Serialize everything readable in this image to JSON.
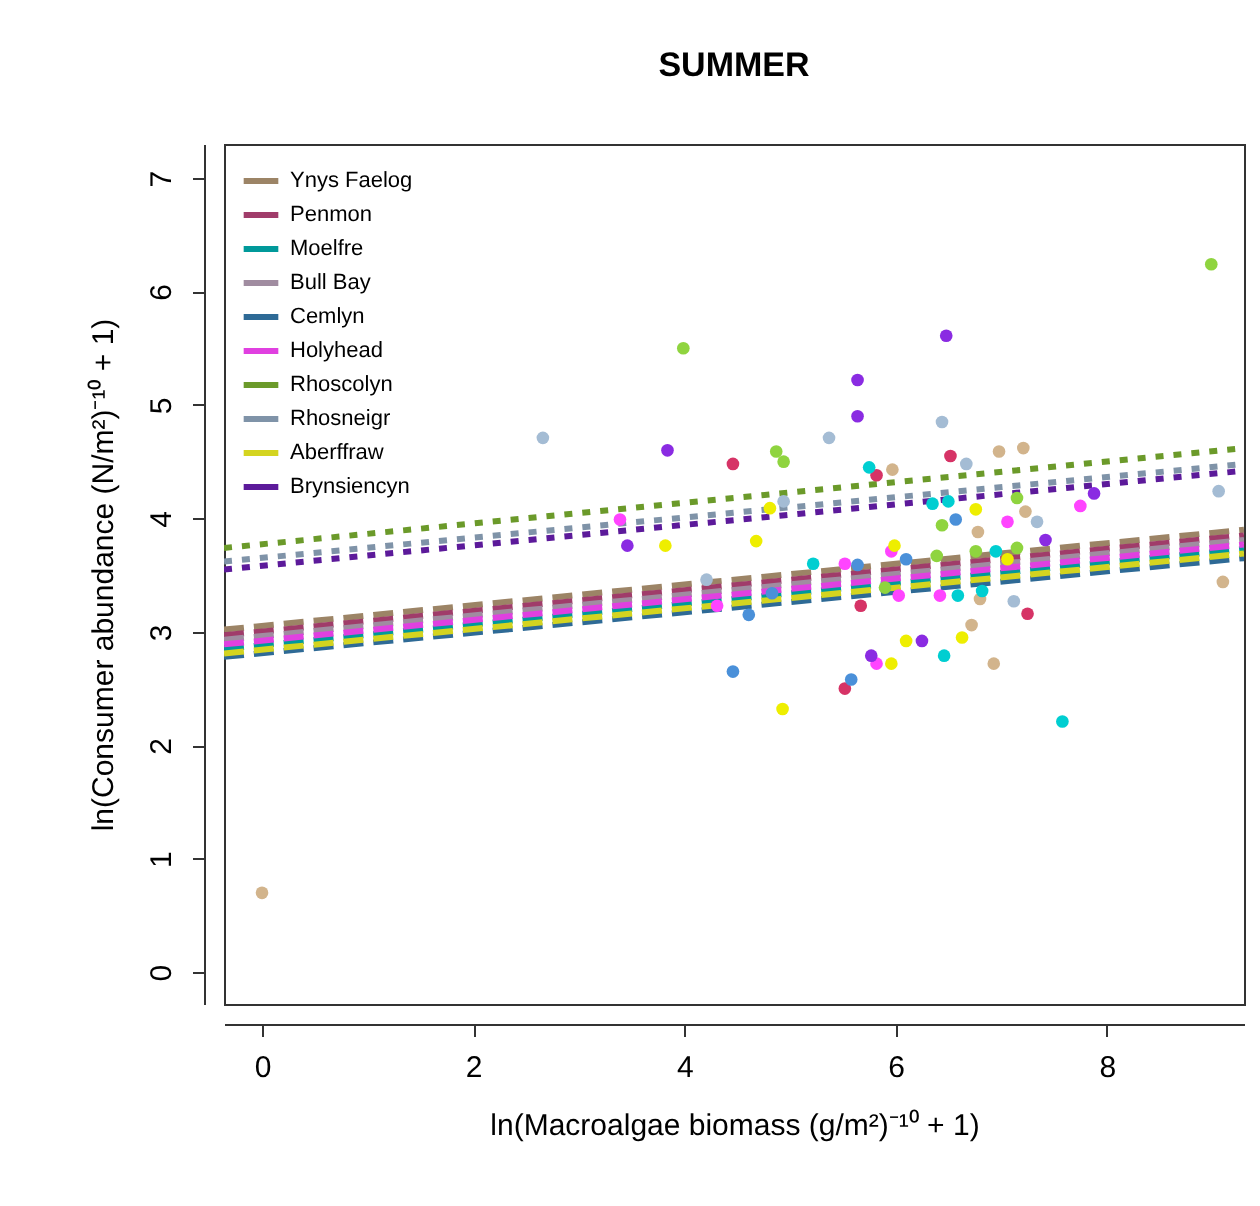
{
  "chart_data": {
    "type": "scatter",
    "title": "SUMMER",
    "xlabel": "ln(Macroalgae biomass (g/m²)⁻¹⁰ + 1)",
    "ylabel": "ln(Consumer abundance (N/m²)⁻¹⁰ + 1)",
    "xlim": [
      -0.36,
      9.3
    ],
    "ylim": [
      -0.28,
      7.3
    ],
    "xticks": [
      0,
      2,
      4,
      6,
      8
    ],
    "yticks": [
      0,
      1,
      2,
      3,
      4,
      5,
      6,
      7
    ],
    "grid": false,
    "legend": "top left",
    "series": [
      {
        "type": "line",
        "name": "Ynys Faelog",
        "color": "#9c8466",
        "line_style": "dashed",
        "x": [
          -0.36,
          9.3
        ],
        "values": [
          3.02,
          3.9
        ]
      },
      {
        "type": "line",
        "name": "Penmon",
        "color": "#a03c6a",
        "line_style": "dashed",
        "x": [
          -0.36,
          9.3
        ],
        "values": [
          2.97,
          3.85
        ]
      },
      {
        "type": "line",
        "name": "Moelfre",
        "color": "#00999a",
        "line_style": "dashed",
        "x": [
          -0.36,
          9.3
        ],
        "values": [
          2.85,
          3.73
        ]
      },
      {
        "type": "line",
        "name": "Bull Bay",
        "color": "#a08ca0",
        "line_style": "dashed",
        "x": [
          -0.36,
          9.3
        ],
        "values": [
          2.93,
          3.81
        ]
      },
      {
        "type": "line",
        "name": "Cemlyn",
        "color": "#2e6a96",
        "line_style": "dashed",
        "x": [
          -0.36,
          9.3
        ],
        "values": [
          2.78,
          3.65
        ]
      },
      {
        "type": "line",
        "name": "Holyhead",
        "color": "#e040e0",
        "line_style": "dashed",
        "x": [
          -0.36,
          9.3
        ],
        "values": [
          2.89,
          3.77
        ]
      },
      {
        "type": "line",
        "name": "Rhoscolyn",
        "color": "#6b9a2a",
        "line_style": "dotted",
        "x": [
          -0.36,
          9.3
        ],
        "values": [
          3.74,
          4.62
        ]
      },
      {
        "type": "line",
        "name": "Rhosneigr",
        "color": "#7f93a8",
        "line_style": "dotted",
        "x": [
          -0.36,
          9.3
        ],
        "values": [
          3.62,
          4.48
        ]
      },
      {
        "type": "line",
        "name": "Aberffraw",
        "color": "#d4d420",
        "line_style": "dashed",
        "x": [
          -0.36,
          9.3
        ],
        "values": [
          2.81,
          3.69
        ]
      },
      {
        "type": "line",
        "name": "Brynsiencyn",
        "color": "#5c1a9a",
        "line_style": "dotted",
        "x": [
          -0.36,
          9.3
        ],
        "values": [
          3.55,
          4.42
        ]
      },
      {
        "marker": "circle",
        "color": "#d2b48c",
        "x": [
          0.0,
          5.97,
          6.98,
          7.21,
          7.23,
          9.1,
          6.78,
          6.8,
          6.72,
          6.93
        ],
        "values": [
          0.7,
          4.43,
          4.59,
          4.62,
          4.06,
          3.44,
          3.88,
          3.29,
          3.06,
          2.72
        ]
      },
      {
        "marker": "circle",
        "color": "#d63366",
        "x": [
          4.46,
          5.82,
          6.52,
          5.67,
          7.25,
          5.52
        ],
        "values": [
          4.48,
          4.38,
          4.55,
          3.23,
          3.16,
          2.5
        ]
      },
      {
        "marker": "circle",
        "color": "#00ced1",
        "x": [
          5.75,
          6.35,
          6.5,
          6.95,
          5.22,
          6.59,
          6.82,
          6.46,
          7.58
        ],
        "values": [
          4.45,
          4.13,
          4.15,
          3.71,
          3.6,
          3.32,
          3.36,
          2.79,
          2.21
        ]
      },
      {
        "marker": "circle",
        "color": "#4a90d9",
        "x": [
          6.57,
          6.1,
          5.64,
          4.83,
          4.61,
          4.46,
          5.58
        ],
        "values": [
          3.99,
          3.64,
          3.59,
          3.34,
          3.15,
          2.65,
          2.58
        ]
      },
      {
        "marker": "circle",
        "color": "#ff44ff",
        "x": [
          7.75,
          3.39,
          7.06,
          5.96,
          5.52,
          4.31,
          6.03,
          6.42,
          5.82
        ],
        "values": [
          4.11,
          3.99,
          3.97,
          3.71,
          3.6,
          3.23,
          3.32,
          3.32,
          2.72
        ]
      },
      {
        "marker": "circle",
        "color": "#8fd43f",
        "x": [
          3.99,
          8.99,
          4.87,
          4.94,
          7.15,
          6.44,
          6.39,
          6.76,
          7.15,
          5.9
        ],
        "values": [
          5.5,
          6.24,
          4.59,
          4.5,
          4.18,
          3.94,
          3.67,
          3.71,
          3.74,
          3.39
        ]
      },
      {
        "marker": "circle",
        "color": "#a4bcd4",
        "x": [
          2.66,
          5.37,
          6.44,
          6.67,
          7.34,
          9.06,
          4.94,
          4.21,
          7.12
        ],
        "values": [
          4.71,
          4.71,
          4.85,
          4.48,
          3.97,
          4.24,
          4.15,
          3.46,
          3.27
        ]
      },
      {
        "marker": "circle",
        "color": "#eeee00",
        "x": [
          3.82,
          4.68,
          4.81,
          6.76,
          5.99,
          7.06,
          6.63,
          6.1,
          5.96,
          4.93
        ],
        "values": [
          3.76,
          3.8,
          4.09,
          4.08,
          3.76,
          3.64,
          2.95,
          2.92,
          2.72,
          2.32
        ]
      },
      {
        "marker": "circle",
        "color": "#8a2be2",
        "x": [
          6.48,
          5.64,
          5.64,
          3.84,
          7.88,
          3.46,
          7.42,
          6.25,
          5.77
        ],
        "values": [
          5.61,
          5.22,
          4.9,
          4.6,
          4.22,
          3.76,
          3.81,
          2.92,
          2.79
        ]
      }
    ]
  }
}
